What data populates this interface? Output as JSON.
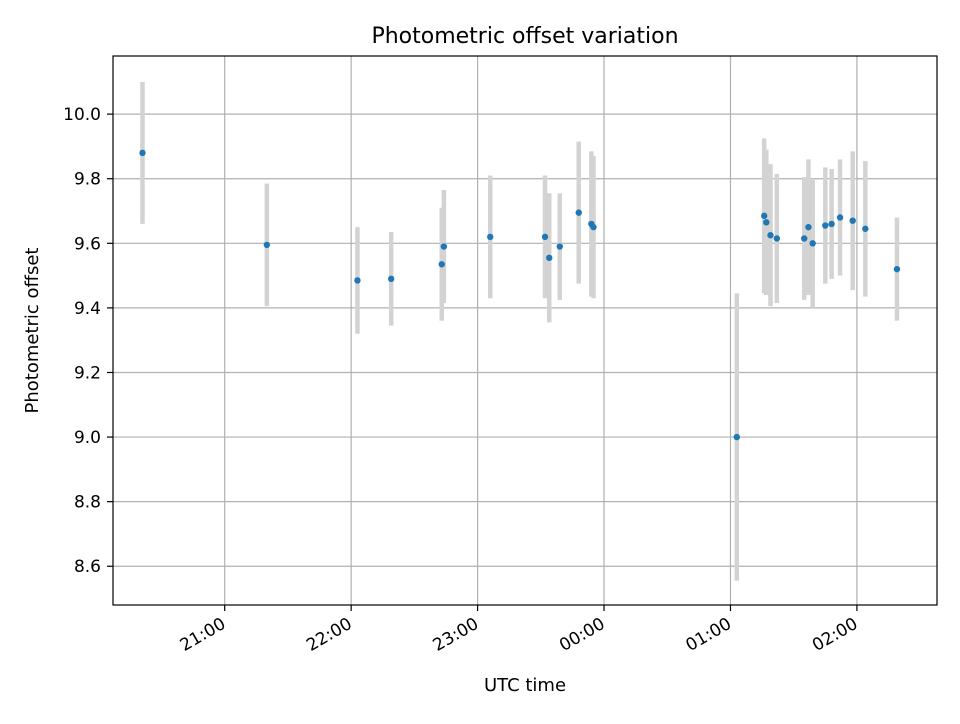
{
  "chart_data": {
    "type": "scatter",
    "title": "Photometric offset variation",
    "xlabel": "UTC time",
    "ylabel": "Photometric offset",
    "x_axis": {
      "unit": "time of night, UTC, starting 20:00",
      "range": [
        "20:07",
        "02:38"
      ],
      "ticks": [
        {
          "value": "21:00",
          "label": "21:00"
        },
        {
          "value": "22:00",
          "label": "22:00"
        },
        {
          "value": "23:00",
          "label": "23:00"
        },
        {
          "value": "00:00",
          "label": "00:00"
        },
        {
          "value": "01:00",
          "label": "01:00"
        },
        {
          "value": "02:00",
          "label": "02:00"
        }
      ]
    },
    "y_axis": {
      "range": [
        8.48,
        10.18
      ],
      "ticks": [
        8.6,
        8.8,
        9.0,
        9.2,
        9.4,
        9.6,
        9.8,
        10.0
      ],
      "tick_labels": [
        "8.6",
        "8.8",
        "9.0",
        "9.2",
        "9.4",
        "9.6",
        "9.8",
        "10.0"
      ]
    },
    "grid": true,
    "marker_color": "#1f77b4",
    "errorbar_color": "#d3d3d3",
    "points": [
      {
        "x": "20:21",
        "y": 9.88,
        "err": 0.22
      },
      {
        "x": "21:20",
        "y": 9.595,
        "err": 0.19
      },
      {
        "x": "22:03",
        "y": 9.485,
        "err": 0.165
      },
      {
        "x": "22:19",
        "y": 9.49,
        "err": 0.145
      },
      {
        "x": "22:43",
        "y": 9.535,
        "err": 0.175
      },
      {
        "x": "22:44",
        "y": 9.59,
        "err": 0.175
      },
      {
        "x": "23:06",
        "y": 9.62,
        "err": 0.19
      },
      {
        "x": "23:32",
        "y": 9.62,
        "err": 0.19
      },
      {
        "x": "23:34",
        "y": 9.555,
        "err": 0.2
      },
      {
        "x": "23:39",
        "y": 9.59,
        "err": 0.165
      },
      {
        "x": "23:48",
        "y": 9.695,
        "err": 0.22
      },
      {
        "x": "23:54",
        "y": 9.66,
        "err": 0.225
      },
      {
        "x": "23:55",
        "y": 9.65,
        "err": 0.22
      },
      {
        "x": "01:03",
        "y": 9.0,
        "err": 0.445
      },
      {
        "x": "01:16",
        "y": 9.685,
        "err": 0.24
      },
      {
        "x": "01:17",
        "y": 9.665,
        "err": 0.225
      },
      {
        "x": "01:19",
        "y": 9.625,
        "err": 0.22
      },
      {
        "x": "01:22",
        "y": 9.615,
        "err": 0.2
      },
      {
        "x": "01:35",
        "y": 9.615,
        "err": 0.19
      },
      {
        "x": "01:37",
        "y": 9.65,
        "err": 0.21
      },
      {
        "x": "01:39",
        "y": 9.6,
        "err": 0.2
      },
      {
        "x": "01:45",
        "y": 9.655,
        "err": 0.18
      },
      {
        "x": "01:48",
        "y": 9.66,
        "err": 0.17
      },
      {
        "x": "01:52",
        "y": 9.68,
        "err": 0.18
      },
      {
        "x": "01:58",
        "y": 9.67,
        "err": 0.215
      },
      {
        "x": "02:04",
        "y": 9.645,
        "err": 0.21
      },
      {
        "x": "02:19",
        "y": 9.52,
        "err": 0.16
      }
    ]
  }
}
